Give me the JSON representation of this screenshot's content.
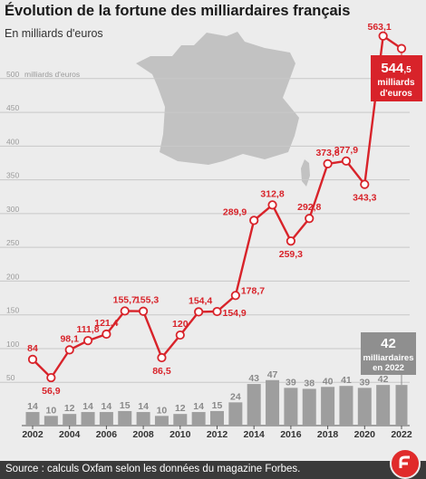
{
  "header": {
    "title": "Évolution de la fortune des milliardaires français",
    "subtitle": "En milliards d'euros"
  },
  "footer": {
    "source": "Source : calculs Oxfam selon les données du magazine Forbes."
  },
  "colors": {
    "wealth_line": "#d8232a",
    "count_bars": "#9e9e9e",
    "callout_box": "#d8232a",
    "count_callout_box": "#8f8f8f",
    "map": "#c2c2c2",
    "grid": "#c8c8c8",
    "background": "#ececec"
  },
  "chart_data": {
    "type": "line",
    "y_unit_label": "milliards d'euros",
    "ylim": [
      0,
      600
    ],
    "y_ticks": [
      50,
      100,
      150,
      200,
      250,
      300,
      350,
      400,
      450,
      500
    ],
    "grid": true,
    "x_tick_labels": [
      "2002",
      "2004",
      "2006",
      "2008",
      "2010",
      "2012",
      "2014",
      "2016",
      "2018",
      "2020",
      "2022"
    ],
    "series": [
      {
        "kind": "line",
        "values": [
          {
            "x": 2002,
            "y": 84,
            "label": "84"
          },
          {
            "x": 2003,
            "y": 56.9,
            "label": "56,9"
          },
          {
            "x": 2004,
            "y": 98.1,
            "label": "98,1"
          },
          {
            "x": 2005,
            "y": 111.8,
            "label": "111,8"
          },
          {
            "x": 2006,
            "y": 121.4,
            "label": "121,4"
          },
          {
            "x": 2007,
            "y": 155.7,
            "label": "155,7"
          },
          {
            "x": 2008,
            "y": 155.3,
            "label": "155,3"
          },
          {
            "x": 2009,
            "y": 86.5,
            "label": "86,5"
          },
          {
            "x": 2010,
            "y": 120,
            "label": "120"
          },
          {
            "x": 2011,
            "y": 154.4,
            "label": "154,4"
          },
          {
            "x": 2012,
            "y": 154.9,
            "label": "154,9"
          },
          {
            "x": 2013,
            "y": 178.7,
            "label": "178,7"
          },
          {
            "x": 2014,
            "y": 289.9,
            "label": "289,9"
          },
          {
            "x": 2015,
            "y": 312.8,
            "label": "312,8"
          },
          {
            "x": 2016,
            "y": 259.3,
            "label": "259,3"
          },
          {
            "x": 2017,
            "y": 292.8,
            "label": "292,8"
          },
          {
            "x": 2018,
            "y": 373.8,
            "label": "373,8"
          },
          {
            "x": 2019,
            "y": 377.9,
            "label": "377,9"
          },
          {
            "x": 2020,
            "y": 343.3,
            "label": "343,3"
          },
          {
            "x": 2021,
            "y": 563.1,
            "label": "563,1"
          },
          {
            "x": 2022,
            "y": 544.5,
            "label": ""
          }
        ]
      },
      {
        "kind": "bar",
        "values": [
          {
            "x": 2002,
            "y": 14
          },
          {
            "x": 2003,
            "y": 10
          },
          {
            "x": 2004,
            "y": 12
          },
          {
            "x": 2005,
            "y": 14
          },
          {
            "x": 2006,
            "y": 14
          },
          {
            "x": 2007,
            "y": 15
          },
          {
            "x": 2008,
            "y": 14
          },
          {
            "x": 2009,
            "y": 10
          },
          {
            "x": 2010,
            "y": 12
          },
          {
            "x": 2011,
            "y": 14
          },
          {
            "x": 2012,
            "y": 15
          },
          {
            "x": 2013,
            "y": 24
          },
          {
            "x": 2014,
            "y": 43
          },
          {
            "x": 2015,
            "y": 47
          },
          {
            "x": 2016,
            "y": 39
          },
          {
            "x": 2017,
            "y": 38
          },
          {
            "x": 2018,
            "y": 40
          },
          {
            "x": 2019,
            "y": 41
          },
          {
            "x": 2020,
            "y": 39
          },
          {
            "x": 2021,
            "y": 42
          },
          {
            "x": 2022,
            "y": 42
          }
        ]
      }
    ],
    "callouts": {
      "wealth_2022": {
        "value_main": "544",
        "value_decimal": ",5",
        "line1": "milliards",
        "line2": "d'euros"
      },
      "count_2022": {
        "value": "42",
        "line1": "milliardaires",
        "line2": "en 2022"
      }
    }
  }
}
